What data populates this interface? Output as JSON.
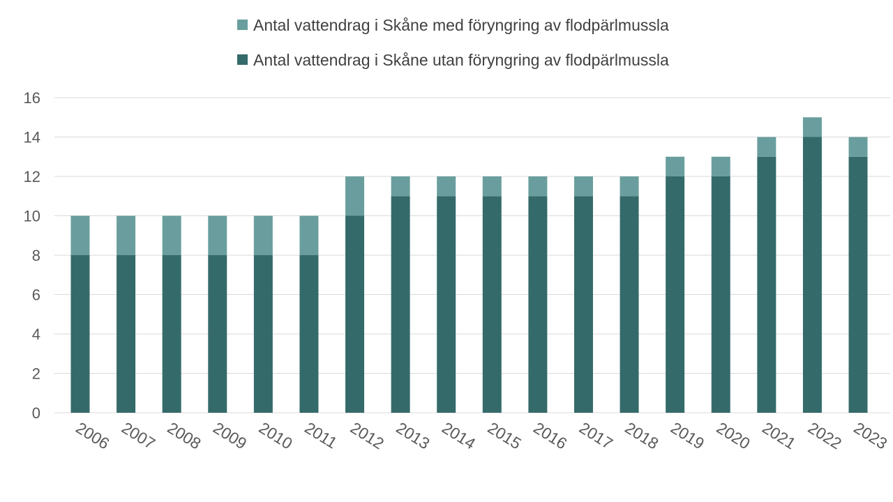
{
  "chart_data": {
    "type": "bar",
    "stacked": true,
    "title": "",
    "xlabel": "",
    "ylabel": "",
    "categories": [
      "2006",
      "2007",
      "2008",
      "2009",
      "2010",
      "2011",
      "2012",
      "2013",
      "2014",
      "2015",
      "2016",
      "2017",
      "2018",
      "2019",
      "2020",
      "2021",
      "2022",
      "2023"
    ],
    "series": [
      {
        "name": "Antal vattendrag i Skåne utan föryngring av flodpärlmussla",
        "color": "#356a6a",
        "values": [
          8,
          8,
          8,
          8,
          8,
          8,
          10,
          11,
          11,
          11,
          11,
          11,
          11,
          12,
          12,
          13,
          14,
          13
        ]
      },
      {
        "name": "Antal vattendrag i Skåne med föryngring av flodpärlmussla",
        "color": "#6a9e9e",
        "values": [
          2,
          2,
          2,
          2,
          2,
          2,
          2,
          1,
          1,
          1,
          1,
          1,
          1,
          1,
          1,
          1,
          1,
          1
        ]
      }
    ],
    "legend": {
      "placement": "top-center",
      "order": [
        1,
        0
      ]
    },
    "ylim": [
      0,
      16
    ],
    "yticks": [
      0,
      2,
      4,
      6,
      8,
      10,
      12,
      14,
      16
    ],
    "grid": true,
    "x_tick_rotation": "diagonal"
  }
}
